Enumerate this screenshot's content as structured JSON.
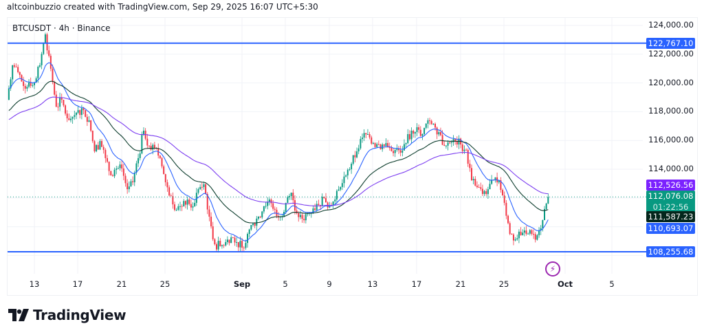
{
  "attribution": "altcoinbuzzio created with TradingView.com, Sep 29, 2025 16:07 UTC+5:30",
  "symbol_line": "BTCUSDT · 4h · Binance",
  "brand": "TradingView",
  "icons": {
    "alert": "lightning-icon",
    "logo": "tradingview-logo-icon"
  },
  "colors": {
    "up": "#089981",
    "down": "#f23645",
    "hline": "#2962ff",
    "ma_fast": "#2962ff",
    "ma_mid": "#0b3b2b",
    "ma_slow": "#7b3cf0",
    "last_price": "#089981"
  },
  "price_axis": [
    "124,000.00",
    "122,000.00",
    "120,000.00",
    "118,000.00",
    "116,000.00",
    "114,000.00"
  ],
  "price_tags": {
    "resistance": "122,767.10",
    "ma_slow": "112,526.56",
    "last_price": "112,076.08",
    "countdown": "01:22:56",
    "ma_mid": "111,587.23",
    "ma_fast": "110,693.07",
    "support": "108,255.68"
  },
  "date_axis": [
    "13",
    "17",
    "21",
    "25",
    "Sep",
    "5",
    "9",
    "13",
    "17",
    "21",
    "25",
    "Oct",
    "5"
  ],
  "chart_data": {
    "type": "candlestick",
    "title": "BTCUSDT · 4h · Binance",
    "start": "2025-08-10T12:00",
    "step_hours": 12,
    "closes": [
      118830,
      121230,
      120750,
      119790,
      120030,
      120030,
      121230,
      123380,
      120990,
      118350,
      118830,
      117540,
      117640,
      118110,
      118110,
      117400,
      115240,
      115960,
      114770,
      113570,
      114050,
      114050,
      112610,
      113090,
      114770,
      116680,
      115630,
      115480,
      114770,
      113090,
      112130,
      111180,
      111420,
      111890,
      111420,
      112610,
      112950,
      110700,
      108780,
      108640,
      108930,
      109260,
      108930,
      108540,
      109500,
      110220,
      110700,
      111420,
      111890,
      111180,
      110700,
      111660,
      112370,
      110940,
      110550,
      110940,
      111270,
      111510,
      111990,
      111510,
      111890,
      112760,
      113570,
      114380,
      115240,
      116200,
      116440,
      115820,
      115720,
      115630,
      115480,
      115340,
      115150,
      115820,
      116680,
      116920,
      116440,
      117400,
      117160,
      116580,
      115630,
      115820,
      115960,
      115720,
      115340,
      113230,
      112760,
      112280,
      112610,
      113230,
      113230,
      111660,
      109500,
      109120,
      109410,
      109500,
      109500,
      109410,
      110460,
      112076.08
    ],
    "horizontal_levels": [
      122767.1,
      108255.68
    ],
    "last_price": 112076.08,
    "moving_averages": [
      {
        "name": "fast",
        "value": 110693.07
      },
      {
        "name": "mid",
        "value": 111587.23
      },
      {
        "name": "slow",
        "value": 112526.56
      }
    ],
    "ylim": [
      106500,
      124800
    ],
    "xlabels": [
      "13",
      "17",
      "21",
      "25",
      "Sep",
      "5",
      "9",
      "13",
      "17",
      "21",
      "25",
      "Oct",
      "5"
    ]
  }
}
